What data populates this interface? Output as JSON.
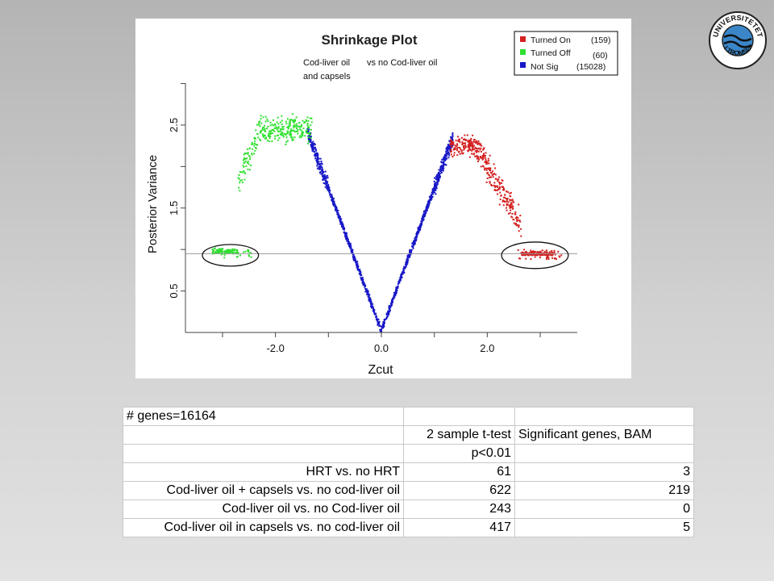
{
  "chart_data": {
    "type": "scatter",
    "title": "Shrinkage Plot",
    "subtitle_left": [
      "Cod-liver oil",
      "and capsels"
    ],
    "subtitle_right": "vs no Cod-liver oil",
    "xlabel": "Zcut",
    "ylabel": "Posterior Variance",
    "xlim": [
      -3.7,
      3.7
    ],
    "ylim": [
      0.0,
      3.2
    ],
    "x_ticks": [
      -3,
      -2,
      -1,
      0,
      1,
      2,
      3
    ],
    "x_tick_labels": [
      {
        "value": -2,
        "label": "-2.0"
      },
      {
        "value": 0,
        "label": "0.0"
      },
      {
        "value": 2,
        "label": "2.0"
      }
    ],
    "y_ticks": [
      0.5,
      1.0,
      1.5,
      2.0,
      2.5,
      3.0
    ],
    "y_tick_labels": [
      {
        "value": 0.5,
        "label": "0.5"
      },
      {
        "value": 1.5,
        "label": "1.5"
      },
      {
        "value": 2.5,
        "label": "2.5"
      }
    ],
    "reference_line_y": 0.95,
    "legend_position": "top-right",
    "series": [
      {
        "name": "Turned On",
        "count_label": "(159)",
        "color": "#d42020",
        "count": 159
      },
      {
        "name": "Turned Off",
        "count_label": "(60)",
        "color": "#30e030",
        "count": 60
      },
      {
        "name": "Not Sig",
        "count_label": "(15028)",
        "color": "#1818c8",
        "count": 15028
      }
    ],
    "highlight_ellipses": [
      {
        "cx": -2.85,
        "cy": 0.93,
        "rx": 0.53,
        "ry": 0.13
      },
      {
        "cx": 2.9,
        "cy": 0.93,
        "rx": 0.63,
        "ry": 0.16
      }
    ]
  },
  "table": {
    "header_note": "# genes=16164",
    "columns": [
      "2 sample t-test",
      "Significant genes, BAM"
    ],
    "threshold": "p<0.01",
    "rows": [
      {
        "label": "HRT vs. no HRT",
        "ttest": "61",
        "bam": "3"
      },
      {
        "label": "Cod-liver oil + capsels vs. no cod-liver oil",
        "ttest": "622",
        "bam": "219"
      },
      {
        "label": "Cod-liver oil vs. no Cod-liver oil",
        "ttest": "243",
        "bam": "0"
      },
      {
        "label": "Cod-liver oil in capsels vs. no cod-liver oil",
        "ttest": "417",
        "bam": "5"
      }
    ]
  },
  "logo": {
    "outer_text": "UNIVERSITETET",
    "lower_text": "I TROMSØ"
  }
}
